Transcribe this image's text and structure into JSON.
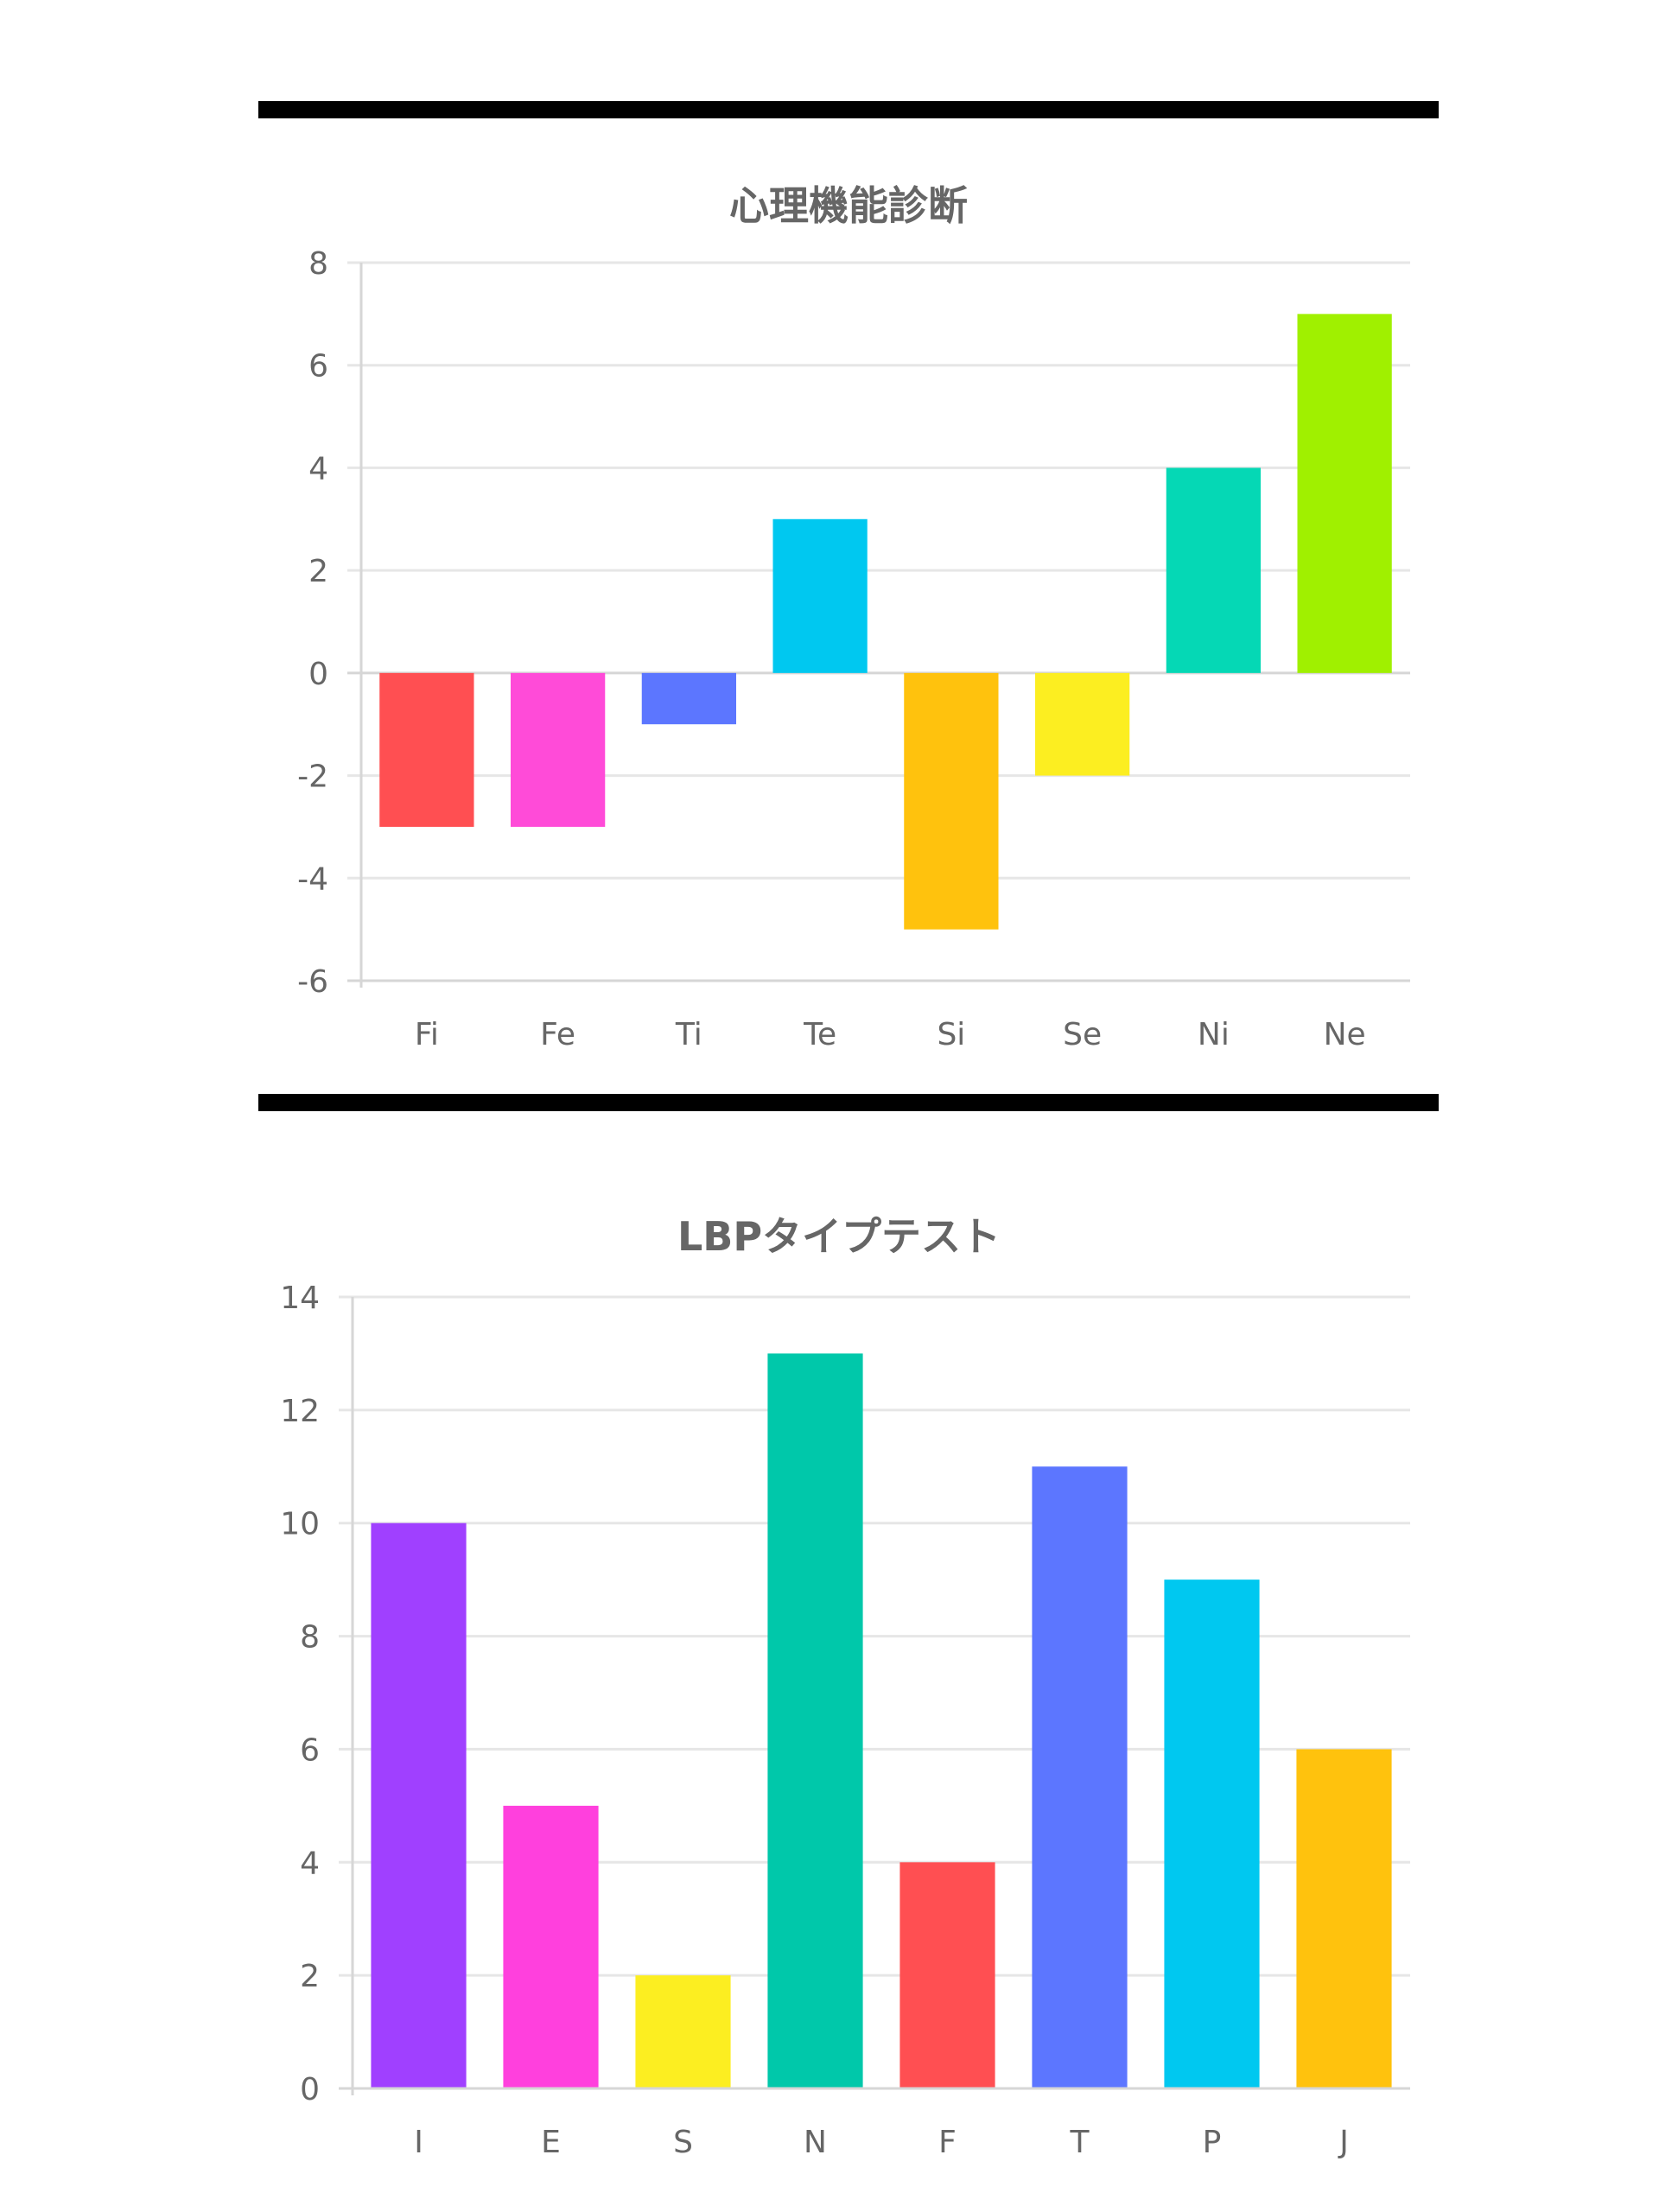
{
  "chart_data": [
    {
      "type": "bar",
      "title": "心理機能診断",
      "categories": [
        "Fi",
        "Fe",
        "Ti",
        "Te",
        "Si",
        "Se",
        "Ni",
        "Ne"
      ],
      "values": [
        -3,
        -3,
        -1,
        3,
        -5,
        -2,
        4,
        7
      ],
      "colors": [
        "#ff4f52",
        "#ff4bd8",
        "#5c76ff",
        "#00c8f0",
        "#ffc20d",
        "#fcee21",
        "#05d8b5",
        "#a0f000"
      ],
      "ylim": [
        -6,
        8
      ],
      "yticks": [
        "8",
        "6",
        "4",
        "2",
        "0",
        "-2",
        "-4",
        "-6"
      ],
      "xlabel": "",
      "ylabel": "",
      "grid": true,
      "legend": "none"
    },
    {
      "type": "bar",
      "title": "LBPタイプテスト",
      "categories": [
        "I",
        "E",
        "S",
        "N",
        "F",
        "T",
        "P",
        "J"
      ],
      "values": [
        10,
        5,
        2,
        13,
        4,
        11,
        9,
        6
      ],
      "colors": [
        "#a040ff",
        "#ff40dd",
        "#fcee21",
        "#00c8aa",
        "#ff4f52",
        "#5c76ff",
        "#00c8f0",
        "#ffc20d"
      ],
      "ylim": [
        0,
        14
      ],
      "yticks": [
        "14",
        "12",
        "10",
        "8",
        "6",
        "4",
        "2",
        "0"
      ],
      "xlabel": "",
      "ylabel": "",
      "grid": true,
      "legend": "none"
    }
  ]
}
